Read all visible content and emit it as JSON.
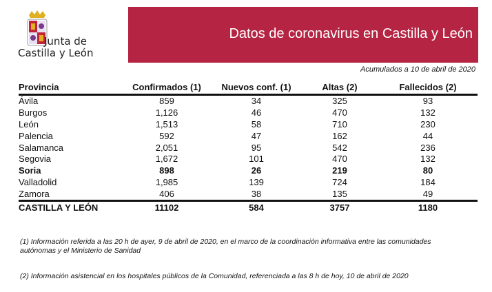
{
  "logo": {
    "line1": "Junta de",
    "line2": "Castilla y León"
  },
  "banner": {
    "title": "Datos de coronavirus en Castilla y León",
    "color": "#b52442"
  },
  "subtitle": "Acumulados a 10 de abril de 2020",
  "table": {
    "headers": [
      "Provincia",
      "Confirmados (1)",
      "Nuevos conf. (1)",
      "Altas (2)",
      "Fallecidos (2)"
    ],
    "rows": [
      [
        "Ávila",
        "859",
        "34",
        "325",
        "93"
      ],
      [
        "Burgos",
        "1,126",
        "46",
        "470",
        "132"
      ],
      [
        "León",
        "1,513",
        "58",
        "710",
        "230"
      ],
      [
        "Palencia",
        "592",
        "47",
        "162",
        "44"
      ],
      [
        "Salamanca",
        "2,051",
        "95",
        "542",
        "236"
      ],
      [
        "Segovia",
        "1,672",
        "101",
        "470",
        "132"
      ],
      [
        "Soria",
        "898",
        "26",
        "219",
        "80"
      ],
      [
        "Valladolid",
        "1,985",
        "139",
        "724",
        "184"
      ],
      [
        "Zamora",
        "406",
        "38",
        "135",
        "49"
      ]
    ],
    "total": [
      "CASTILLA Y LEÓN",
      "11102",
      "584",
      "3757",
      "1180"
    ]
  },
  "notes": [
    "(1) Información referida a las 20 h de ayer, 9 de abril de 2020, en el marco de la coordinación informativa entre las comunidades autónomas y el Ministerio de Sanidad",
    "(2) Información asistencial en los hospitales públicos de la Comunidad, referenciada a las 8 h de hoy, 10 de abril de 2020"
  ]
}
